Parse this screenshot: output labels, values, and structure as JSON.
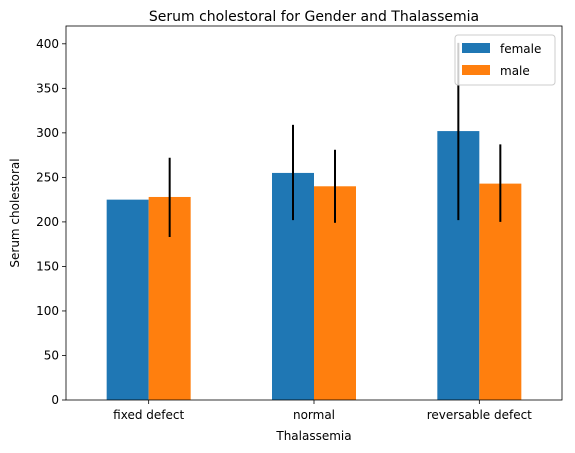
{
  "chart_data": {
    "type": "bar",
    "title": "Serum cholestoral for Gender and Thalassemia",
    "xlabel": "Thalassemia",
    "ylabel": "Serum cholestoral",
    "categories": [
      "fixed defect",
      "normal",
      "reversable defect"
    ],
    "series": [
      {
        "name": "female",
        "color": "#1f77b4",
        "values": [
          225,
          255,
          302
        ],
        "error_low": [
          225,
          202,
          202
        ],
        "error_high": [
          225,
          309,
          401
        ]
      },
      {
        "name": "male",
        "color": "#ff7f0e",
        "values": [
          228,
          240,
          243
        ],
        "error_low": [
          183,
          199,
          200
        ],
        "error_high": [
          272,
          281,
          287
        ]
      }
    ],
    "ylim": [
      0,
      420
    ],
    "yticks": [
      0,
      50,
      100,
      150,
      200,
      250,
      300,
      350,
      400
    ],
    "grid": false,
    "legend_position": "top-right"
  }
}
